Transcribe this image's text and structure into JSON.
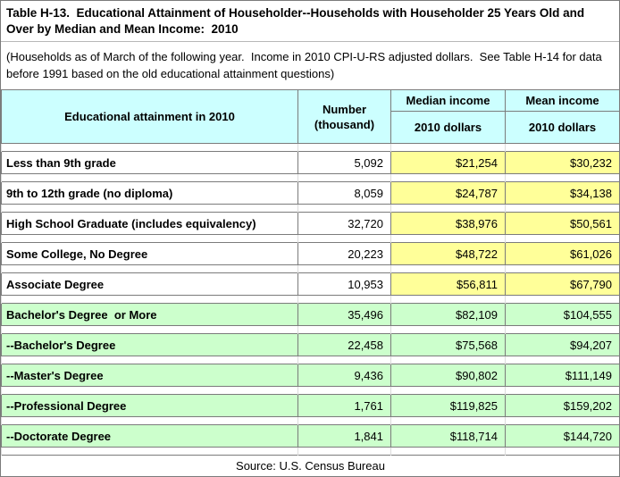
{
  "title": "Table H-13.  Educational Attainment of Householder--Households with Householder 25 Years Old and Over by Median and Mean Income:  2010",
  "note": "(Households as of March of the following year.  Income in 2010 CPI-U-RS adjusted dollars.  See Table H-14 for data before 1991 based on the old educational attainment questions)",
  "source": "Source: U.S. Census Bureau",
  "colors": {
    "header_bg": "#CCFFFF",
    "highlight_yellow": "#FFFF99",
    "highlight_green": "#CCFFCC",
    "border_dark": "#7B7B7B",
    "gridline": "#DCDCDC"
  },
  "table": {
    "headers": {
      "attainment": "Educational attainment in 2010",
      "number_line1": "Number",
      "number_line2": "(thousand)",
      "median": "Median income",
      "mean": "Mean income",
      "median_sub": "2010 dollars",
      "mean_sub": "2010 dollars"
    },
    "rows": [
      {
        "label": "Less than 9th grade",
        "number": "5,092",
        "median": "$21,254",
        "mean": "$30,232",
        "group": "no-degree"
      },
      {
        "label": "9th to 12th grade (no diploma)",
        "number": "8,059",
        "median": "$24,787",
        "mean": "$34,138",
        "group": "no-degree"
      },
      {
        "label": "High School Graduate (includes equivalency)",
        "number": "32,720",
        "median": "$38,976",
        "mean": "$50,561",
        "group": "no-degree"
      },
      {
        "label": "Some College, No Degree",
        "number": "20,223",
        "median": "$48,722",
        "mean": "$61,026",
        "group": "no-degree"
      },
      {
        "label": "Associate Degree",
        "number": "10,953",
        "median": "$56,811",
        "mean": "$67,790",
        "group": "no-degree"
      },
      {
        "label": "Bachelor's Degree  or More",
        "number": "35,496",
        "median": "$82,109",
        "mean": "$104,555",
        "group": "college"
      },
      {
        "label": "--Bachelor's Degree",
        "number": "22,458",
        "median": "$75,568",
        "mean": "$94,207",
        "group": "college"
      },
      {
        "label": "--Master's Degree",
        "number": "9,436",
        "median": "$90,802",
        "mean": "$111,149",
        "group": "college"
      },
      {
        "label": "--Professional Degree",
        "number": "1,761",
        "median": "$119,825",
        "mean": "$159,202",
        "group": "college"
      },
      {
        "label": "--Doctorate Degree",
        "number": "1,841",
        "median": "$118,714",
        "mean": "$144,720",
        "group": "college"
      }
    ]
  }
}
